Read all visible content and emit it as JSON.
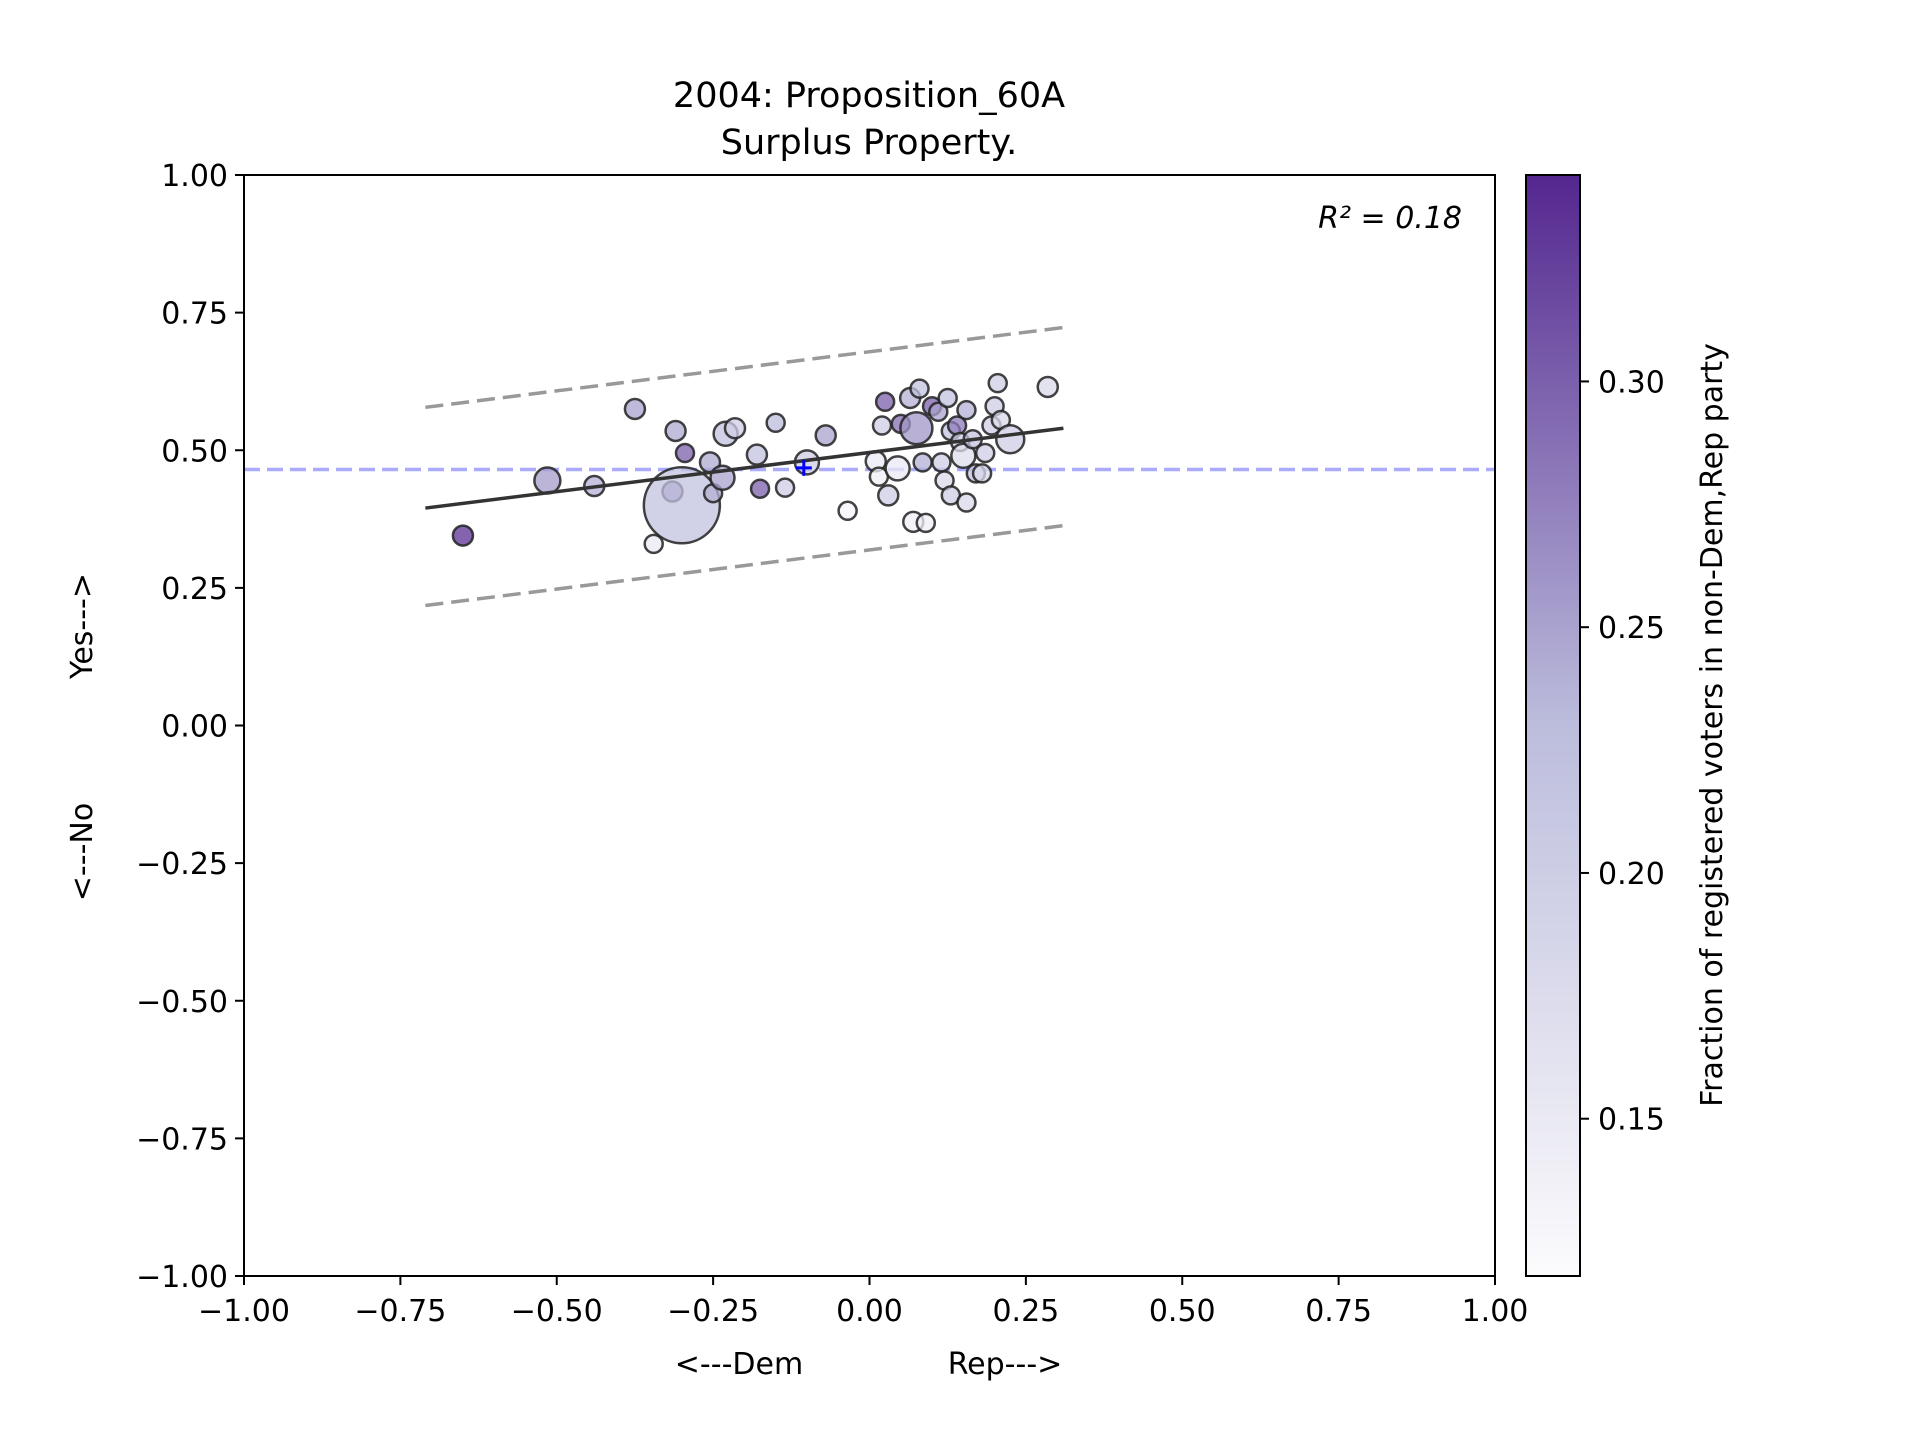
{
  "chart_data": {
    "type": "scatter",
    "title": "2004: Proposition_60A",
    "subtitle": "Surplus Property.",
    "xlabel_left": "<---Dem",
    "xlabel_right": "Rep--->",
    "ylabel_bottom": "<---No",
    "ylabel_top": "Yes--->",
    "xlim": [
      -1.0,
      1.0
    ],
    "ylim": [
      -1.0,
      1.0
    ],
    "x_ticks": [
      -1.0,
      -0.75,
      -0.5,
      -0.25,
      0.0,
      0.25,
      0.5,
      0.75,
      1.0
    ],
    "x_tick_labels": [
      "−1.00",
      "−0.75",
      "−0.50",
      "−0.25",
      "0.00",
      "0.25",
      "0.50",
      "0.75",
      "1.00"
    ],
    "y_ticks": [
      -1.0,
      -0.75,
      -0.5,
      -0.25,
      0.0,
      0.25,
      0.5,
      0.75,
      1.0
    ],
    "y_tick_labels": [
      "−1.00",
      "−0.75",
      "−0.50",
      "−0.25",
      "0.00",
      "0.25",
      "0.50",
      "0.75",
      "1.00"
    ],
    "grid": false,
    "annotation_r2": "R² = 0.18",
    "reference_line": {
      "y": 0.465,
      "color": "#aaaaff",
      "style": "dashed"
    },
    "marker": {
      "x": -0.105,
      "y": 0.468,
      "color": "#0000ff",
      "symbol": "plus"
    },
    "fit_line": {
      "x": [
        -0.71,
        0.31
      ],
      "y": [
        0.395,
        0.54
      ],
      "color": "#333333"
    },
    "band_upper": {
      "x": [
        -0.71,
        0.31
      ],
      "y": [
        0.578,
        0.723
      ],
      "color": "#999999",
      "style": "dashed"
    },
    "band_lower": {
      "x": [
        -0.71,
        0.31
      ],
      "y": [
        0.218,
        0.363
      ],
      "color": "#999999",
      "style": "dashed"
    },
    "colorbar": {
      "label": "Fraction of registered voters in non-Dem,Rep party",
      "range": [
        0.118,
        0.342
      ],
      "ticks": [
        0.15,
        0.2,
        0.25,
        0.3
      ],
      "tick_labels": [
        "0.15",
        "0.20",
        "0.25",
        "0.30"
      ],
      "color_low": "#fcfbfd",
      "color_high": "#54278f"
    },
    "points": [
      {
        "x": -0.65,
        "y": 0.345,
        "c": 0.335,
        "s": 10
      },
      {
        "x": -0.515,
        "y": 0.445,
        "c": 0.255,
        "s": 13
      },
      {
        "x": -0.44,
        "y": 0.435,
        "c": 0.24,
        "s": 10
      },
      {
        "x": -0.375,
        "y": 0.575,
        "c": 0.25,
        "s": 10
      },
      {
        "x": -0.345,
        "y": 0.33,
        "c": 0.15,
        "s": 9
      },
      {
        "x": -0.315,
        "y": 0.425,
        "c": 0.28,
        "s": 10
      },
      {
        "x": -0.31,
        "y": 0.535,
        "c": 0.245,
        "s": 10
      },
      {
        "x": -0.3,
        "y": 0.4,
        "c": 0.22,
        "s": 38
      },
      {
        "x": -0.295,
        "y": 0.495,
        "c": 0.3,
        "s": 9
      },
      {
        "x": -0.255,
        "y": 0.478,
        "c": 0.245,
        "s": 10
      },
      {
        "x": -0.25,
        "y": 0.422,
        "c": 0.24,
        "s": 9
      },
      {
        "x": -0.235,
        "y": 0.45,
        "c": 0.25,
        "s": 12
      },
      {
        "x": -0.23,
        "y": 0.53,
        "c": 0.22,
        "s": 12
      },
      {
        "x": -0.215,
        "y": 0.54,
        "c": 0.2,
        "s": 10
      },
      {
        "x": -0.18,
        "y": 0.492,
        "c": 0.22,
        "s": 10
      },
      {
        "x": -0.175,
        "y": 0.43,
        "c": 0.3,
        "s": 9
      },
      {
        "x": -0.15,
        "y": 0.55,
        "c": 0.23,
        "s": 9
      },
      {
        "x": -0.135,
        "y": 0.432,
        "c": 0.2,
        "s": 9
      },
      {
        "x": -0.1,
        "y": 0.478,
        "c": 0.2,
        "s": 12
      },
      {
        "x": -0.07,
        "y": 0.527,
        "c": 0.25,
        "s": 10
      },
      {
        "x": -0.035,
        "y": 0.39,
        "c": 0.13,
        "s": 9
      },
      {
        "x": 0.01,
        "y": 0.48,
        "c": 0.15,
        "s": 10
      },
      {
        "x": 0.015,
        "y": 0.452,
        "c": 0.14,
        "s": 9
      },
      {
        "x": 0.02,
        "y": 0.545,
        "c": 0.2,
        "s": 9
      },
      {
        "x": 0.025,
        "y": 0.588,
        "c": 0.3,
        "s": 9
      },
      {
        "x": 0.03,
        "y": 0.418,
        "c": 0.2,
        "s": 10
      },
      {
        "x": 0.045,
        "y": 0.467,
        "c": 0.15,
        "s": 12
      },
      {
        "x": 0.05,
        "y": 0.548,
        "c": 0.29,
        "s": 9
      },
      {
        "x": 0.065,
        "y": 0.595,
        "c": 0.24,
        "s": 10
      },
      {
        "x": 0.07,
        "y": 0.37,
        "c": 0.14,
        "s": 10
      },
      {
        "x": 0.075,
        "y": 0.54,
        "c": 0.26,
        "s": 16
      },
      {
        "x": 0.08,
        "y": 0.612,
        "c": 0.22,
        "s": 9
      },
      {
        "x": 0.085,
        "y": 0.478,
        "c": 0.24,
        "s": 9
      },
      {
        "x": 0.09,
        "y": 0.368,
        "c": 0.14,
        "s": 9
      },
      {
        "x": 0.1,
        "y": 0.58,
        "c": 0.3,
        "s": 9
      },
      {
        "x": 0.11,
        "y": 0.57,
        "c": 0.25,
        "s": 9
      },
      {
        "x": 0.115,
        "y": 0.478,
        "c": 0.2,
        "s": 9
      },
      {
        "x": 0.12,
        "y": 0.445,
        "c": 0.18,
        "s": 9
      },
      {
        "x": 0.125,
        "y": 0.595,
        "c": 0.22,
        "s": 9
      },
      {
        "x": 0.13,
        "y": 0.535,
        "c": 0.22,
        "s": 9
      },
      {
        "x": 0.13,
        "y": 0.418,
        "c": 0.2,
        "s": 9
      },
      {
        "x": 0.14,
        "y": 0.545,
        "c": 0.28,
        "s": 9
      },
      {
        "x": 0.145,
        "y": 0.515,
        "c": 0.2,
        "s": 9
      },
      {
        "x": 0.15,
        "y": 0.49,
        "c": 0.17,
        "s": 12
      },
      {
        "x": 0.155,
        "y": 0.573,
        "c": 0.24,
        "s": 9
      },
      {
        "x": 0.155,
        "y": 0.405,
        "c": 0.18,
        "s": 9
      },
      {
        "x": 0.165,
        "y": 0.52,
        "c": 0.22,
        "s": 9
      },
      {
        "x": 0.17,
        "y": 0.458,
        "c": 0.22,
        "s": 9
      },
      {
        "x": 0.18,
        "y": 0.458,
        "c": 0.18,
        "s": 9
      },
      {
        "x": 0.185,
        "y": 0.495,
        "c": 0.2,
        "s": 9
      },
      {
        "x": 0.195,
        "y": 0.545,
        "c": 0.2,
        "s": 9
      },
      {
        "x": 0.2,
        "y": 0.58,
        "c": 0.2,
        "s": 9
      },
      {
        "x": 0.205,
        "y": 0.622,
        "c": 0.2,
        "s": 9
      },
      {
        "x": 0.21,
        "y": 0.555,
        "c": 0.18,
        "s": 9
      },
      {
        "x": 0.225,
        "y": 0.52,
        "c": 0.2,
        "s": 14
      },
      {
        "x": 0.285,
        "y": 0.615,
        "c": 0.18,
        "s": 10
      }
    ]
  }
}
